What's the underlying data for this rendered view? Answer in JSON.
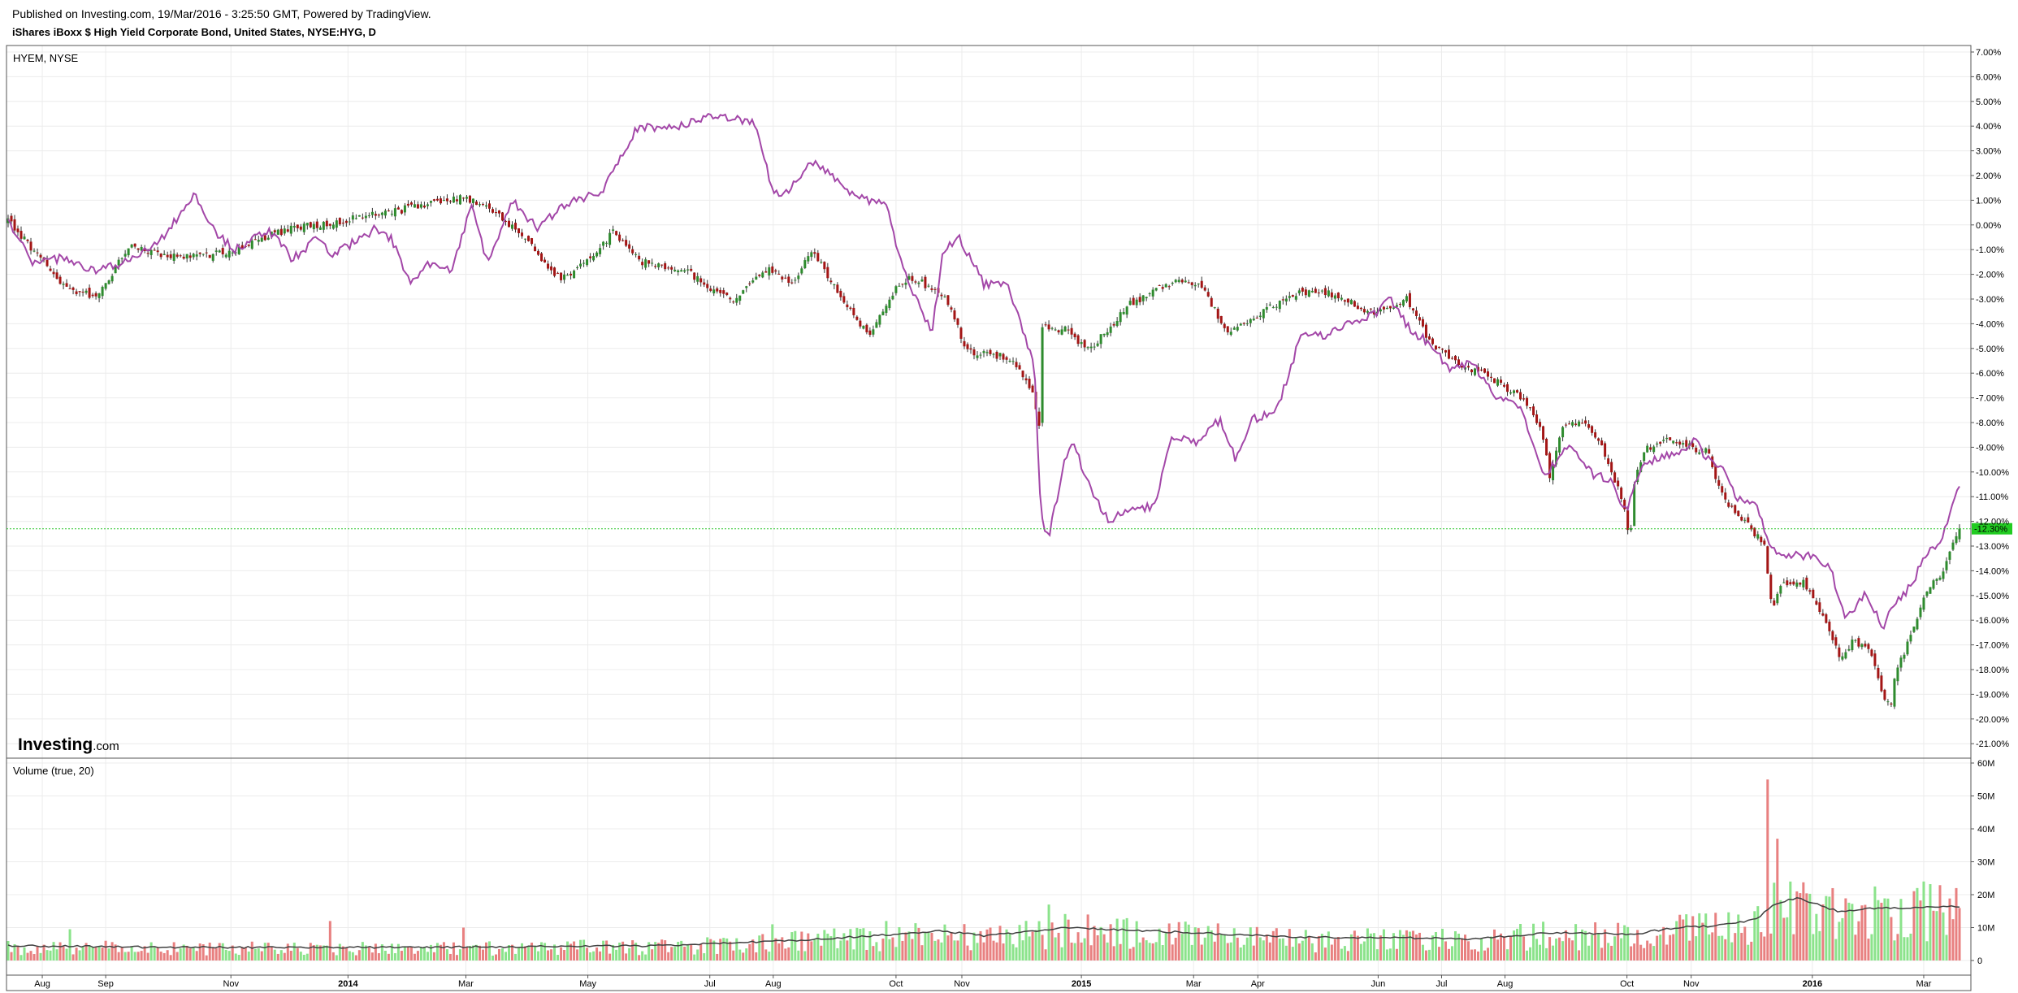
{
  "header": {
    "published": "Published on Investing.com, 19/Mar/2016 - 3:25:50 GMT, Powered by TradingView.",
    "instrument": "iShares iBoxx $ High Yield Corporate Bond, United States, NYSE:HYG, D"
  },
  "chart_data": {
    "type": "candlestick",
    "main_pane": {
      "legend": "HYEM, NYSE",
      "y_ticks": [
        "7.00%",
        "6.00%",
        "5.00%",
        "4.00%",
        "3.00%",
        "2.00%",
        "1.00%",
        "0.00%",
        "-1.00%",
        "-2.00%",
        "-3.00%",
        "-4.00%",
        "-5.00%",
        "-6.00%",
        "-7.00%",
        "-8.00%",
        "-9.00%",
        "-10.00%",
        "-11.00%",
        "-12.00%",
        "-13.00%",
        "-14.00%",
        "-15.00%",
        "-16.00%",
        "-17.00%",
        "-18.00%",
        "-19.00%",
        "-20.00%",
        "-21.00%"
      ],
      "ylim": [
        -21.5,
        7.5
      ],
      "last_value_label": "-12.30%",
      "last_value": -12.3,
      "compare_series_color": "#a347a8",
      "up_color": "#2e8b2e",
      "down_color": "#a31515",
      "hyg_line_anchors": [
        [
          0,
          0.2
        ],
        [
          30,
          -1.0
        ],
        [
          70,
          -2.6
        ],
        [
          110,
          -2.9
        ],
        [
          150,
          -0.8
        ],
        [
          185,
          -1.2
        ],
        [
          230,
          -1.3
        ],
        [
          280,
          -1.0
        ],
        [
          330,
          -0.3
        ],
        [
          360,
          -0.1
        ],
        [
          415,
          0.2
        ],
        [
          470,
          0.5
        ],
        [
          520,
          0.9
        ],
        [
          560,
          1.1
        ],
        [
          600,
          0.5
        ],
        [
          640,
          -0.6
        ],
        [
          660,
          -1.6
        ],
        [
          672,
          -2.1
        ],
        [
          690,
          -2.1
        ],
        [
          745,
          -0.3
        ],
        [
          780,
          -1.5
        ],
        [
          835,
          -1.9
        ],
        [
          890,
          -3.1
        ],
        [
          935,
          -1.8
        ],
        [
          965,
          -2.4
        ],
        [
          990,
          -1.0
        ],
        [
          1030,
          -3.3
        ],
        [
          1060,
          -4.5
        ],
        [
          1090,
          -2.6
        ],
        [
          1110,
          -2.1
        ],
        [
          1150,
          -2.8
        ],
        [
          1180,
          -5.1
        ],
        [
          1235,
          -5.4
        ],
        [
          1262,
          -7.0
        ],
        [
          1268,
          -8.0
        ],
        [
          1272,
          -4.2
        ],
        [
          1300,
          -4.2
        ],
        [
          1330,
          -5.1
        ],
        [
          1380,
          -3.2
        ],
        [
          1440,
          -2.2
        ],
        [
          1465,
          -2.4
        ],
        [
          1500,
          -4.3
        ],
        [
          1540,
          -3.6
        ],
        [
          1580,
          -2.8
        ],
        [
          1620,
          -2.7
        ],
        [
          1680,
          -3.6
        ],
        [
          1720,
          -3.0
        ],
        [
          1750,
          -4.8
        ],
        [
          1780,
          -5.5
        ],
        [
          1810,
          -6.0
        ],
        [
          1840,
          -6.5
        ],
        [
          1870,
          -7.3
        ],
        [
          1890,
          -8.7
        ],
        [
          1895,
          -10.5
        ],
        [
          1910,
          -8.3
        ],
        [
          1940,
          -7.9
        ],
        [
          1960,
          -8.9
        ],
        [
          1978,
          -10.5
        ],
        [
          1990,
          -11.8
        ],
        [
          1995,
          -12.8
        ],
        [
          2000,
          -10.6
        ],
        [
          2010,
          -9.2
        ],
        [
          2040,
          -8.6
        ],
        [
          2060,
          -8.9
        ],
        [
          2090,
          -9.2
        ],
        [
          2110,
          -11.1
        ],
        [
          2140,
          -12.1
        ],
        [
          2160,
          -13.0
        ],
        [
          2170,
          -15.6
        ],
        [
          2180,
          -14.5
        ],
        [
          2210,
          -14.5
        ],
        [
          2240,
          -16.4
        ],
        [
          2255,
          -17.6
        ],
        [
          2268,
          -16.8
        ],
        [
          2290,
          -17.2
        ],
        [
          2305,
          -19.0
        ],
        [
          2315,
          -19.6
        ],
        [
          2320,
          -18.3
        ],
        [
          2340,
          -16.6
        ],
        [
          2360,
          -14.8
        ],
        [
          2380,
          -14.0
        ],
        [
          2398,
          -12.3
        ]
      ],
      "hyem_line_anchors": [
        [
          0,
          0.2
        ],
        [
          30,
          -1.6
        ],
        [
          70,
          -1.3
        ],
        [
          110,
          -1.9
        ],
        [
          150,
          -1.4
        ],
        [
          190,
          -0.5
        ],
        [
          230,
          1.2
        ],
        [
          260,
          -0.5
        ],
        [
          280,
          -1.0
        ],
        [
          320,
          -0.2
        ],
        [
          350,
          -1.4
        ],
        [
          380,
          -0.5
        ],
        [
          400,
          -1.2
        ],
        [
          450,
          -0.2
        ],
        [
          470,
          -0.5
        ],
        [
          495,
          -2.4
        ],
        [
          520,
          -1.5
        ],
        [
          545,
          -1.9
        ],
        [
          570,
          0.8
        ],
        [
          590,
          -1.6
        ],
        [
          620,
          1.0
        ],
        [
          650,
          -0.1
        ],
        [
          690,
          0.9
        ],
        [
          730,
          1.3
        ],
        [
          775,
          4.0
        ],
        [
          820,
          3.9
        ],
        [
          860,
          4.4
        ],
        [
          880,
          4.4
        ],
        [
          920,
          4.1
        ],
        [
          940,
          1.3
        ],
        [
          960,
          1.3
        ],
        [
          985,
          2.6
        ],
        [
          1010,
          2.1
        ],
        [
          1040,
          1.2
        ],
        [
          1080,
          0.8
        ],
        [
          1100,
          -1.8
        ],
        [
          1120,
          -3.2
        ],
        [
          1136,
          -4.4
        ],
        [
          1150,
          -1.1
        ],
        [
          1170,
          -0.5
        ],
        [
          1200,
          -2.4
        ],
        [
          1230,
          -2.5
        ],
        [
          1262,
          -5.6
        ],
        [
          1268,
          -10.5
        ],
        [
          1272,
          -12.0
        ],
        [
          1280,
          -12.6
        ],
        [
          1300,
          -9.5
        ],
        [
          1310,
          -8.9
        ],
        [
          1335,
          -11.0
        ],
        [
          1355,
          -12.0
        ],
        [
          1380,
          -11.5
        ],
        [
          1410,
          -11.4
        ],
        [
          1430,
          -8.5
        ],
        [
          1460,
          -8.8
        ],
        [
          1490,
          -7.9
        ],
        [
          1510,
          -9.5
        ],
        [
          1530,
          -7.9
        ],
        [
          1560,
          -7.5
        ],
        [
          1590,
          -4.5
        ],
        [
          1620,
          -4.5
        ],
        [
          1650,
          -4.0
        ],
        [
          1680,
          -3.6
        ],
        [
          1700,
          -3.0
        ],
        [
          1725,
          -4.3
        ],
        [
          1750,
          -4.8
        ],
        [
          1770,
          -5.8
        ],
        [
          1800,
          -5.6
        ],
        [
          1830,
          -6.9
        ],
        [
          1860,
          -7.5
        ],
        [
          1890,
          -10.1
        ],
        [
          1920,
          -8.9
        ],
        [
          1950,
          -10.1
        ],
        [
          1970,
          -10.3
        ],
        [
          1990,
          -11.6
        ],
        [
          2010,
          -9.6
        ],
        [
          2050,
          -9.3
        ],
        [
          2075,
          -8.7
        ],
        [
          2090,
          -9.5
        ],
        [
          2110,
          -9.7
        ],
        [
          2125,
          -11.0
        ],
        [
          2150,
          -11.4
        ],
        [
          2170,
          -13.1
        ],
        [
          2190,
          -13.4
        ],
        [
          2220,
          -13.4
        ],
        [
          2240,
          -13.8
        ],
        [
          2260,
          -15.9
        ],
        [
          2285,
          -14.9
        ],
        [
          2305,
          -16.3
        ],
        [
          2320,
          -15.4
        ],
        [
          2340,
          -14.6
        ],
        [
          2360,
          -13.3
        ],
        [
          2380,
          -12.6
        ],
        [
          2398,
          -10.7
        ]
      ]
    },
    "volume_pane": {
      "legend": "Volume (true, 20)",
      "y_ticks": [
        "60M",
        "50M",
        "40M",
        "30M",
        "20M",
        "10M",
        "0"
      ],
      "ylim": [
        0,
        60
      ],
      "unit": "M",
      "up_color": "#8be38b",
      "down_color": "#e88080",
      "ma_color": "#404040",
      "spikes_millions": [
        [
          75,
          9.5
        ],
        [
          270,
          9
        ],
        [
          395,
          12
        ],
        [
          490,
          11
        ],
        [
          560,
          10
        ],
        [
          940,
          11
        ],
        [
          1080,
          12
        ],
        [
          1130,
          14
        ],
        [
          1280,
          17
        ],
        [
          1570,
          13
        ],
        [
          1890,
          19
        ],
        [
          2050,
          18
        ],
        [
          2150,
          32
        ],
        [
          2165,
          55
        ],
        [
          2175,
          37
        ],
        [
          2200,
          21
        ],
        [
          2250,
          22
        ],
        [
          2310,
          24
        ],
        [
          2355,
          24
        ],
        [
          2395,
          22
        ]
      ],
      "ma_anchors_millions": [
        [
          0,
          4.5
        ],
        [
          200,
          4
        ],
        [
          500,
          4
        ],
        [
          800,
          4.5
        ],
        [
          1000,
          6.5
        ],
        [
          1150,
          9
        ],
        [
          1200,
          7.5
        ],
        [
          1300,
          10
        ],
        [
          1500,
          8
        ],
        [
          1600,
          7
        ],
        [
          1700,
          7
        ],
        [
          1800,
          6.5
        ],
        [
          1900,
          8.5
        ],
        [
          2000,
          8
        ],
        [
          2050,
          10
        ],
        [
          2100,
          10.5
        ],
        [
          2150,
          12.5
        ],
        [
          2170,
          17
        ],
        [
          2200,
          19
        ],
        [
          2250,
          15
        ],
        [
          2300,
          16
        ],
        [
          2350,
          16
        ],
        [
          2400,
          16.5
        ]
      ]
    },
    "x_ticks": [
      {
        "label": "Aug",
        "bold": false,
        "t": 42
      },
      {
        "label": "Sep",
        "bold": false,
        "t": 120
      },
      {
        "label": "Nov",
        "bold": false,
        "t": 274
      },
      {
        "label": "2014",
        "bold": true,
        "t": 418
      },
      {
        "label": "Mar",
        "bold": false,
        "t": 563
      },
      {
        "label": "May",
        "bold": false,
        "t": 713
      },
      {
        "label": "Jul",
        "bold": false,
        "t": 863
      },
      {
        "label": "Aug",
        "bold": false,
        "t": 941
      },
      {
        "label": "Oct",
        "bold": false,
        "t": 1092
      },
      {
        "label": "Nov",
        "bold": false,
        "t": 1173
      },
      {
        "label": "2015",
        "bold": true,
        "t": 1320
      },
      {
        "label": "Mar",
        "bold": false,
        "t": 1458
      },
      {
        "label": "Apr",
        "bold": false,
        "t": 1537
      },
      {
        "label": "Jun",
        "bold": false,
        "t": 1685
      },
      {
        "label": "Jul",
        "bold": false,
        "t": 1763
      },
      {
        "label": "Aug",
        "bold": false,
        "t": 1841
      },
      {
        "label": "Oct",
        "bold": false,
        "t": 1991
      },
      {
        "label": "Nov",
        "bold": false,
        "t": 2070
      },
      {
        "label": "2016",
        "bold": true,
        "t": 2219
      },
      {
        "label": "Mar",
        "bold": false,
        "t": 2356
      }
    ]
  },
  "watermark": {
    "brand": "Investing",
    "suffix": ".com"
  }
}
